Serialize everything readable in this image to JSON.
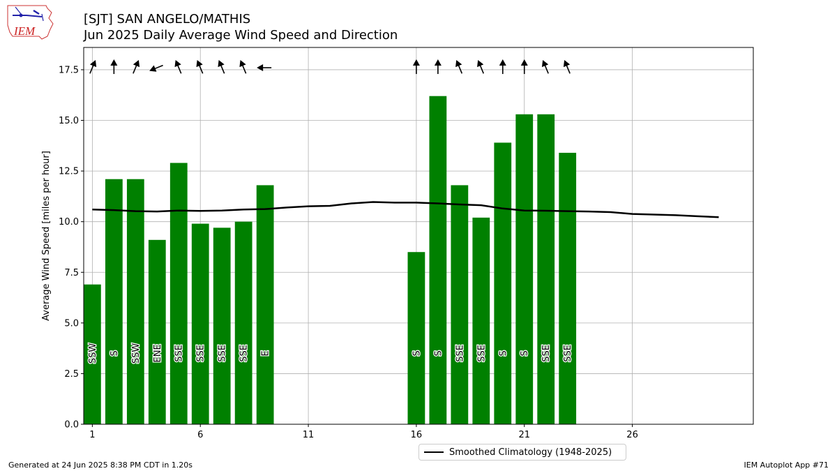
{
  "header": {
    "title_line1": "[SJT] SAN ANGELO/MATHIS",
    "title_line2": "Jun 2025 Daily Average Wind Speed and Direction"
  },
  "logo": {
    "text": "IEM"
  },
  "footer": {
    "generated": "Generated at 24 Jun 2025 8:38 PM CDT in 1.20s",
    "app": "IEM Autoplot App #71"
  },
  "legend": {
    "climatology_label": "Smoothed Climatology (1948-2025)"
  },
  "colors": {
    "bar": "#008000",
    "climatology": "#000000",
    "grid": "#b0b0b0"
  },
  "chart_data": {
    "type": "bar",
    "ylabel": "Average Wind Speed [miles per hour]",
    "xlim": [
      0.6,
      31.6
    ],
    "ylim": [
      0,
      18.6
    ],
    "xticks": [
      1,
      6,
      11,
      16,
      21,
      26
    ],
    "yticks": [
      0.0,
      2.5,
      5.0,
      7.5,
      10.0,
      12.5,
      15.0,
      17.5
    ],
    "grid": true,
    "legend_position": "bottom-center",
    "series": [
      {
        "name": "daily average",
        "days": [
          1,
          2,
          3,
          4,
          5,
          6,
          7,
          8,
          9,
          16,
          17,
          18,
          19,
          20,
          21,
          22,
          23
        ],
        "values": [
          6.9,
          12.1,
          12.1,
          9.1,
          12.9,
          9.9,
          9.7,
          10.0,
          11.8,
          8.5,
          16.2,
          11.8,
          10.2,
          13.9,
          15.3,
          15.3,
          13.4
        ],
        "directions": [
          "SSW",
          "S",
          "SSW",
          "ENE",
          "SSE",
          "SSE",
          "SSE",
          "SSE",
          "E",
          "S",
          "S",
          "SSE",
          "SSE",
          "S",
          "S",
          "SSE",
          "SSE"
        ]
      },
      {
        "name": "Smoothed Climatology (1948-2025)",
        "days": [
          1,
          2,
          3,
          4,
          5,
          6,
          7,
          8,
          9,
          10,
          11,
          12,
          13,
          14,
          15,
          16,
          17,
          18,
          19,
          20,
          21,
          22,
          23,
          24,
          25,
          26,
          27,
          28,
          29,
          30
        ],
        "values": [
          10.6,
          10.57,
          10.52,
          10.5,
          10.55,
          10.53,
          10.55,
          10.6,
          10.62,
          10.7,
          10.76,
          10.78,
          10.9,
          10.97,
          10.94,
          10.94,
          10.9,
          10.85,
          10.81,
          10.65,
          10.55,
          10.54,
          10.52,
          10.5,
          10.47,
          10.38,
          10.35,
          10.32,
          10.27,
          10.22
        ]
      }
    ]
  }
}
